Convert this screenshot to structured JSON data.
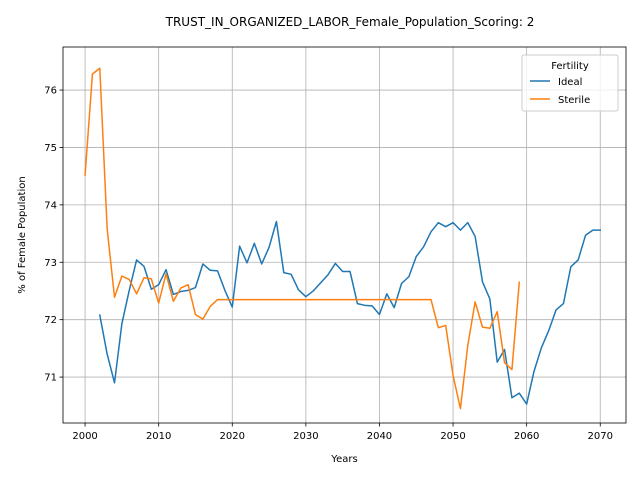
{
  "chart_data": {
    "type": "line",
    "title": "TRUST_IN_ORGANIZED_LABOR_Female_Population_Scoring: 2",
    "xlabel": "Years",
    "ylabel": "% of Female Population",
    "xlim": [
      1997,
      2073.5
    ],
    "ylim": [
      70.2,
      76.75
    ],
    "xticks": [
      2000,
      2010,
      2020,
      2030,
      2040,
      2050,
      2060,
      2070
    ],
    "yticks": [
      71,
      72,
      73,
      74,
      75,
      76
    ],
    "grid": true,
    "legend": {
      "title": "Fertility",
      "location": "top-right"
    },
    "series": [
      {
        "name": "Ideal",
        "color": "#1f77b4",
        "x": [
          2002,
          2003,
          2004,
          2005,
          2006,
          2007,
          2008,
          2009,
          2010,
          2011,
          2012,
          2013,
          2014,
          2015,
          2016,
          2017,
          2018,
          2019,
          2020,
          2021,
          2022,
          2023,
          2024,
          2025,
          2026,
          2027,
          2028,
          2029,
          2030,
          2031,
          2032,
          2033,
          2034,
          2035,
          2036,
          2037,
          2038,
          2039,
          2040,
          2041,
          2042,
          2043,
          2044,
          2045,
          2046,
          2047,
          2048,
          2049,
          2050,
          2051,
          2052,
          2053,
          2054,
          2055,
          2056,
          2057,
          2058,
          2059,
          2060,
          2061,
          2062,
          2063,
          2064,
          2065,
          2066,
          2067,
          2068,
          2069,
          2070
        ],
        "values": [
          72.08,
          71.4,
          70.9,
          71.93,
          72.51,
          73.04,
          72.93,
          72.53,
          72.61,
          72.87,
          72.44,
          72.49,
          72.51,
          72.56,
          72.97,
          72.86,
          72.85,
          72.51,
          72.22,
          73.28,
          72.99,
          73.33,
          72.97,
          73.26,
          73.71,
          72.82,
          72.79,
          72.52,
          72.4,
          72.5,
          72.64,
          72.78,
          72.98,
          72.84,
          72.84,
          72.28,
          72.25,
          72.24,
          72.09,
          72.45,
          72.21,
          72.63,
          72.75,
          73.1,
          73.27,
          73.53,
          73.69,
          73.62,
          73.69,
          73.56,
          73.69,
          73.45,
          72.66,
          72.36,
          71.26,
          71.48,
          70.64,
          70.72,
          70.53,
          71.1,
          71.51,
          71.81,
          72.17,
          72.28,
          72.92,
          73.04,
          73.47,
          73.56,
          73.56
        ]
      },
      {
        "name": "Sterile",
        "color": "#ff7f0e",
        "x": [
          2000,
          2001,
          2002,
          2003,
          2004,
          2005,
          2006,
          2007,
          2008,
          2009,
          2010,
          2011,
          2012,
          2013,
          2014,
          2015,
          2016,
          2017,
          2018,
          2019,
          2020,
          2021,
          2022,
          2023,
          2024,
          2025,
          2026,
          2027,
          2028,
          2029,
          2030,
          2031,
          2032,
          2033,
          2034,
          2035,
          2036,
          2037,
          2038,
          2039,
          2040,
          2041,
          2042,
          2043,
          2044,
          2045,
          2046,
          2047,
          2048,
          2049,
          2050,
          2051,
          2052,
          2053,
          2054,
          2055,
          2056,
          2057,
          2058,
          2059
        ],
        "values": [
          74.52,
          76.28,
          76.38,
          73.58,
          72.39,
          72.76,
          72.7,
          72.45,
          72.73,
          72.71,
          72.29,
          72.8,
          72.32,
          72.55,
          72.61,
          72.09,
          72.01,
          72.23,
          72.35,
          72.35,
          72.35,
          72.35,
          72.35,
          72.35,
          72.35,
          72.35,
          72.35,
          72.35,
          72.35,
          72.35,
          72.35,
          72.35,
          72.35,
          72.35,
          72.35,
          72.35,
          72.35,
          72.35,
          72.35,
          72.35,
          72.35,
          72.35,
          72.35,
          72.35,
          72.35,
          72.35,
          72.35,
          72.35,
          71.86,
          71.9,
          71.03,
          70.45,
          71.55,
          72.31,
          71.87,
          71.85,
          72.14,
          71.25,
          71.13,
          72.65
        ]
      }
    ]
  }
}
